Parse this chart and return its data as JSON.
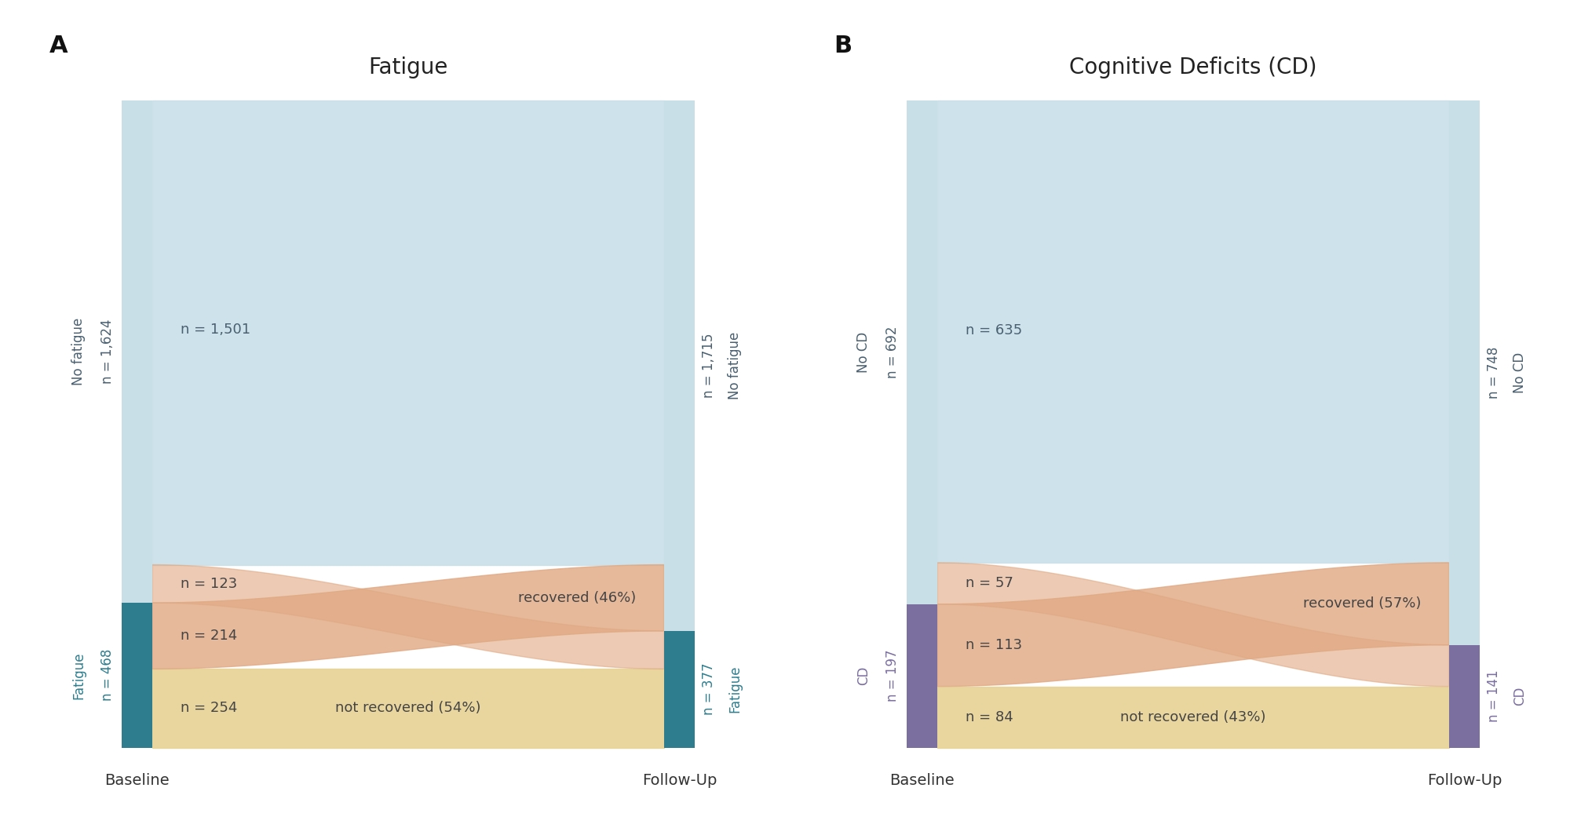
{
  "panels": [
    {
      "label": "A",
      "title": "Fatigue",
      "baseline_no_label": "No fatigue",
      "baseline_yes_label": "Fatigue",
      "followup_no_label": "No fatigue",
      "followup_yes_label": "Fatigue",
      "baseline_no_n": 1624,
      "baseline_yes_n": 468,
      "followup_no_n": 1715,
      "followup_yes_n": 377,
      "flow_no_no": 1501,
      "flow_no_yes_n": 123,
      "flow_yes_no_n": 214,
      "flow_yes_yes_n": 254,
      "flow_yes_no_label": "recovered (46%)",
      "flow_yes_yes_label": "not recovered (54%)",
      "yes_color": "#2d7d8e",
      "no_color": "#c8dfe8",
      "recovered_color": "#e8d49a",
      "newcase_color": "#e0a882"
    },
    {
      "label": "B",
      "title": "Cognitive Deficits (CD)",
      "baseline_no_label": "No CD",
      "baseline_yes_label": "CD",
      "followup_no_label": "No CD",
      "followup_yes_label": "CD",
      "baseline_no_n": 692,
      "baseline_yes_n": 197,
      "followup_no_n": 748,
      "followup_yes_n": 141,
      "flow_no_no": 635,
      "flow_no_yes_n": 57,
      "flow_yes_no_n": 113,
      "flow_yes_yes_n": 84,
      "flow_yes_no_label": "recovered (57%)",
      "flow_yes_yes_label": "not recovered (43%)",
      "yes_color": "#7b6fa0",
      "no_color": "#c8dfe8",
      "recovered_color": "#e8d49a",
      "newcase_color": "#e0a882"
    }
  ],
  "bg_color": "#ffffff",
  "text_color": "#4a6070",
  "bar_text_color_no": "#5a7a8a",
  "bar_text_color_yes_A": "#2d7d8e",
  "bar_text_color_yes_B": "#7b6fa0",
  "title_fontsize": 20,
  "panel_label_fontsize": 22,
  "axis_label_fontsize": 14,
  "count_fontsize": 13,
  "flow_label_fontsize": 13,
  "bar_label_fontsize": 12
}
